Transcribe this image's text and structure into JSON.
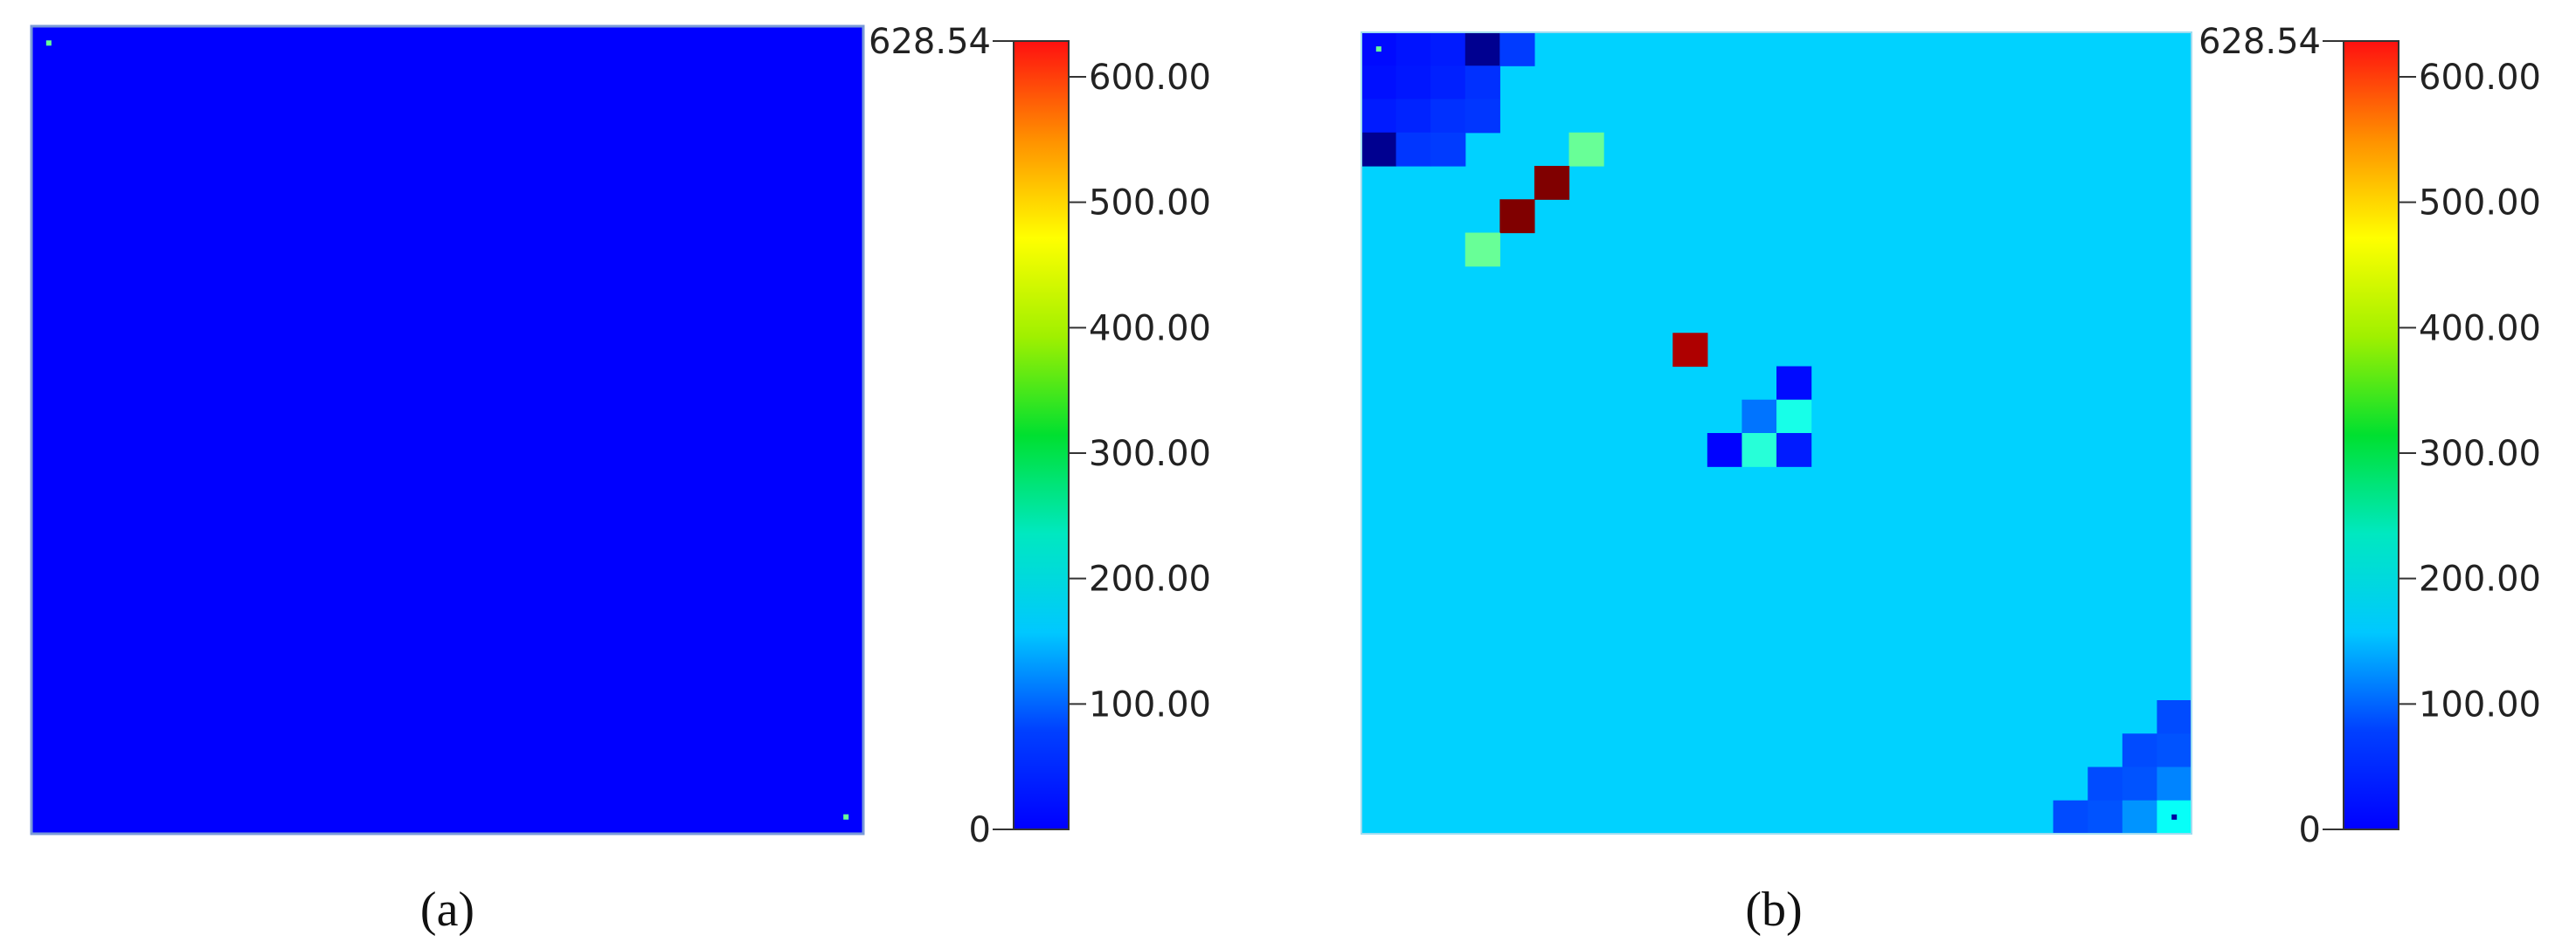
{
  "chart_data": [
    {
      "type": "heatmap",
      "caption": "(a)",
      "grid_size": 24,
      "background_value": 10,
      "colorscale": "jet",
      "color_range": [
        0,
        628.54
      ],
      "colorbar_ticks": [
        "0",
        "100.00",
        "200.00",
        "300.00",
        "400.00",
        "500.00",
        "600.00",
        "628.54"
      ],
      "colorbar_tick_values": [
        0,
        100,
        200,
        300,
        400,
        500,
        600,
        628.54
      ],
      "cells": [],
      "markers": [
        {
          "row": 0,
          "col": 0,
          "value": 300
        },
        {
          "row": 23,
          "col": 23,
          "value": 300
        }
      ]
    },
    {
      "type": "heatmap",
      "caption": "(b)",
      "grid_size": 24,
      "background_value": 120,
      "colorscale": "jet",
      "color_range": [
        0,
        628.54
      ],
      "colorbar_ticks": [
        "0",
        "100.00",
        "200.00",
        "300.00",
        "400.00",
        "500.00",
        "600.00",
        "628.54"
      ],
      "colorbar_tick_values": [
        0,
        100,
        200,
        300,
        400,
        500,
        600,
        628.54
      ],
      "cells": [
        {
          "row": 0,
          "col": 0,
          "value": 85
        },
        {
          "row": 0,
          "col": 1,
          "value": 90
        },
        {
          "row": 0,
          "col": 2,
          "value": 95
        },
        {
          "row": 0,
          "col": 3,
          "value": 10
        },
        {
          "row": 0,
          "col": 4,
          "value": 115
        },
        {
          "row": 1,
          "col": 0,
          "value": 88
        },
        {
          "row": 1,
          "col": 1,
          "value": 92
        },
        {
          "row": 1,
          "col": 2,
          "value": 98
        },
        {
          "row": 1,
          "col": 3,
          "value": 108
        },
        {
          "row": 2,
          "col": 0,
          "value": 95
        },
        {
          "row": 2,
          "col": 1,
          "value": 100
        },
        {
          "row": 2,
          "col": 2,
          "value": 108
        },
        {
          "row": 2,
          "col": 3,
          "value": 112
        },
        {
          "row": 3,
          "col": 0,
          "value": 10
        },
        {
          "row": 3,
          "col": 1,
          "value": 112
        },
        {
          "row": 3,
          "col": 2,
          "value": 115
        },
        {
          "row": 3,
          "col": 6,
          "value": 300
        },
        {
          "row": 4,
          "col": 5,
          "value": 628
        },
        {
          "row": 5,
          "col": 4,
          "value": 628
        },
        {
          "row": 6,
          "col": 3,
          "value": 300
        },
        {
          "row": 9,
          "col": 9,
          "value": 600
        },
        {
          "row": 10,
          "col": 12,
          "value": 85
        },
        {
          "row": 11,
          "col": 11,
          "value": 150
        },
        {
          "row": 11,
          "col": 12,
          "value": 250
        },
        {
          "row": 12,
          "col": 10,
          "value": 80
        },
        {
          "row": 12,
          "col": 11,
          "value": 260
        },
        {
          "row": 12,
          "col": 12,
          "value": 95
        },
        {
          "row": 20,
          "col": 23,
          "value": 125
        },
        {
          "row": 21,
          "col": 22,
          "value": 125
        },
        {
          "row": 21,
          "col": 23,
          "value": 130
        },
        {
          "row": 22,
          "col": 21,
          "value": 125
        },
        {
          "row": 22,
          "col": 22,
          "value": 130
        },
        {
          "row": 22,
          "col": 23,
          "value": 160
        },
        {
          "row": 23,
          "col": 20,
          "value": 125
        },
        {
          "row": 23,
          "col": 21,
          "value": 130
        },
        {
          "row": 23,
          "col": 22,
          "value": 170
        },
        {
          "row": 23,
          "col": 23,
          "value": 240
        }
      ],
      "markers": [
        {
          "row": 0,
          "col": 0,
          "value": 300
        },
        {
          "row": 23,
          "col": 23,
          "value": 20
        }
      ]
    }
  ]
}
